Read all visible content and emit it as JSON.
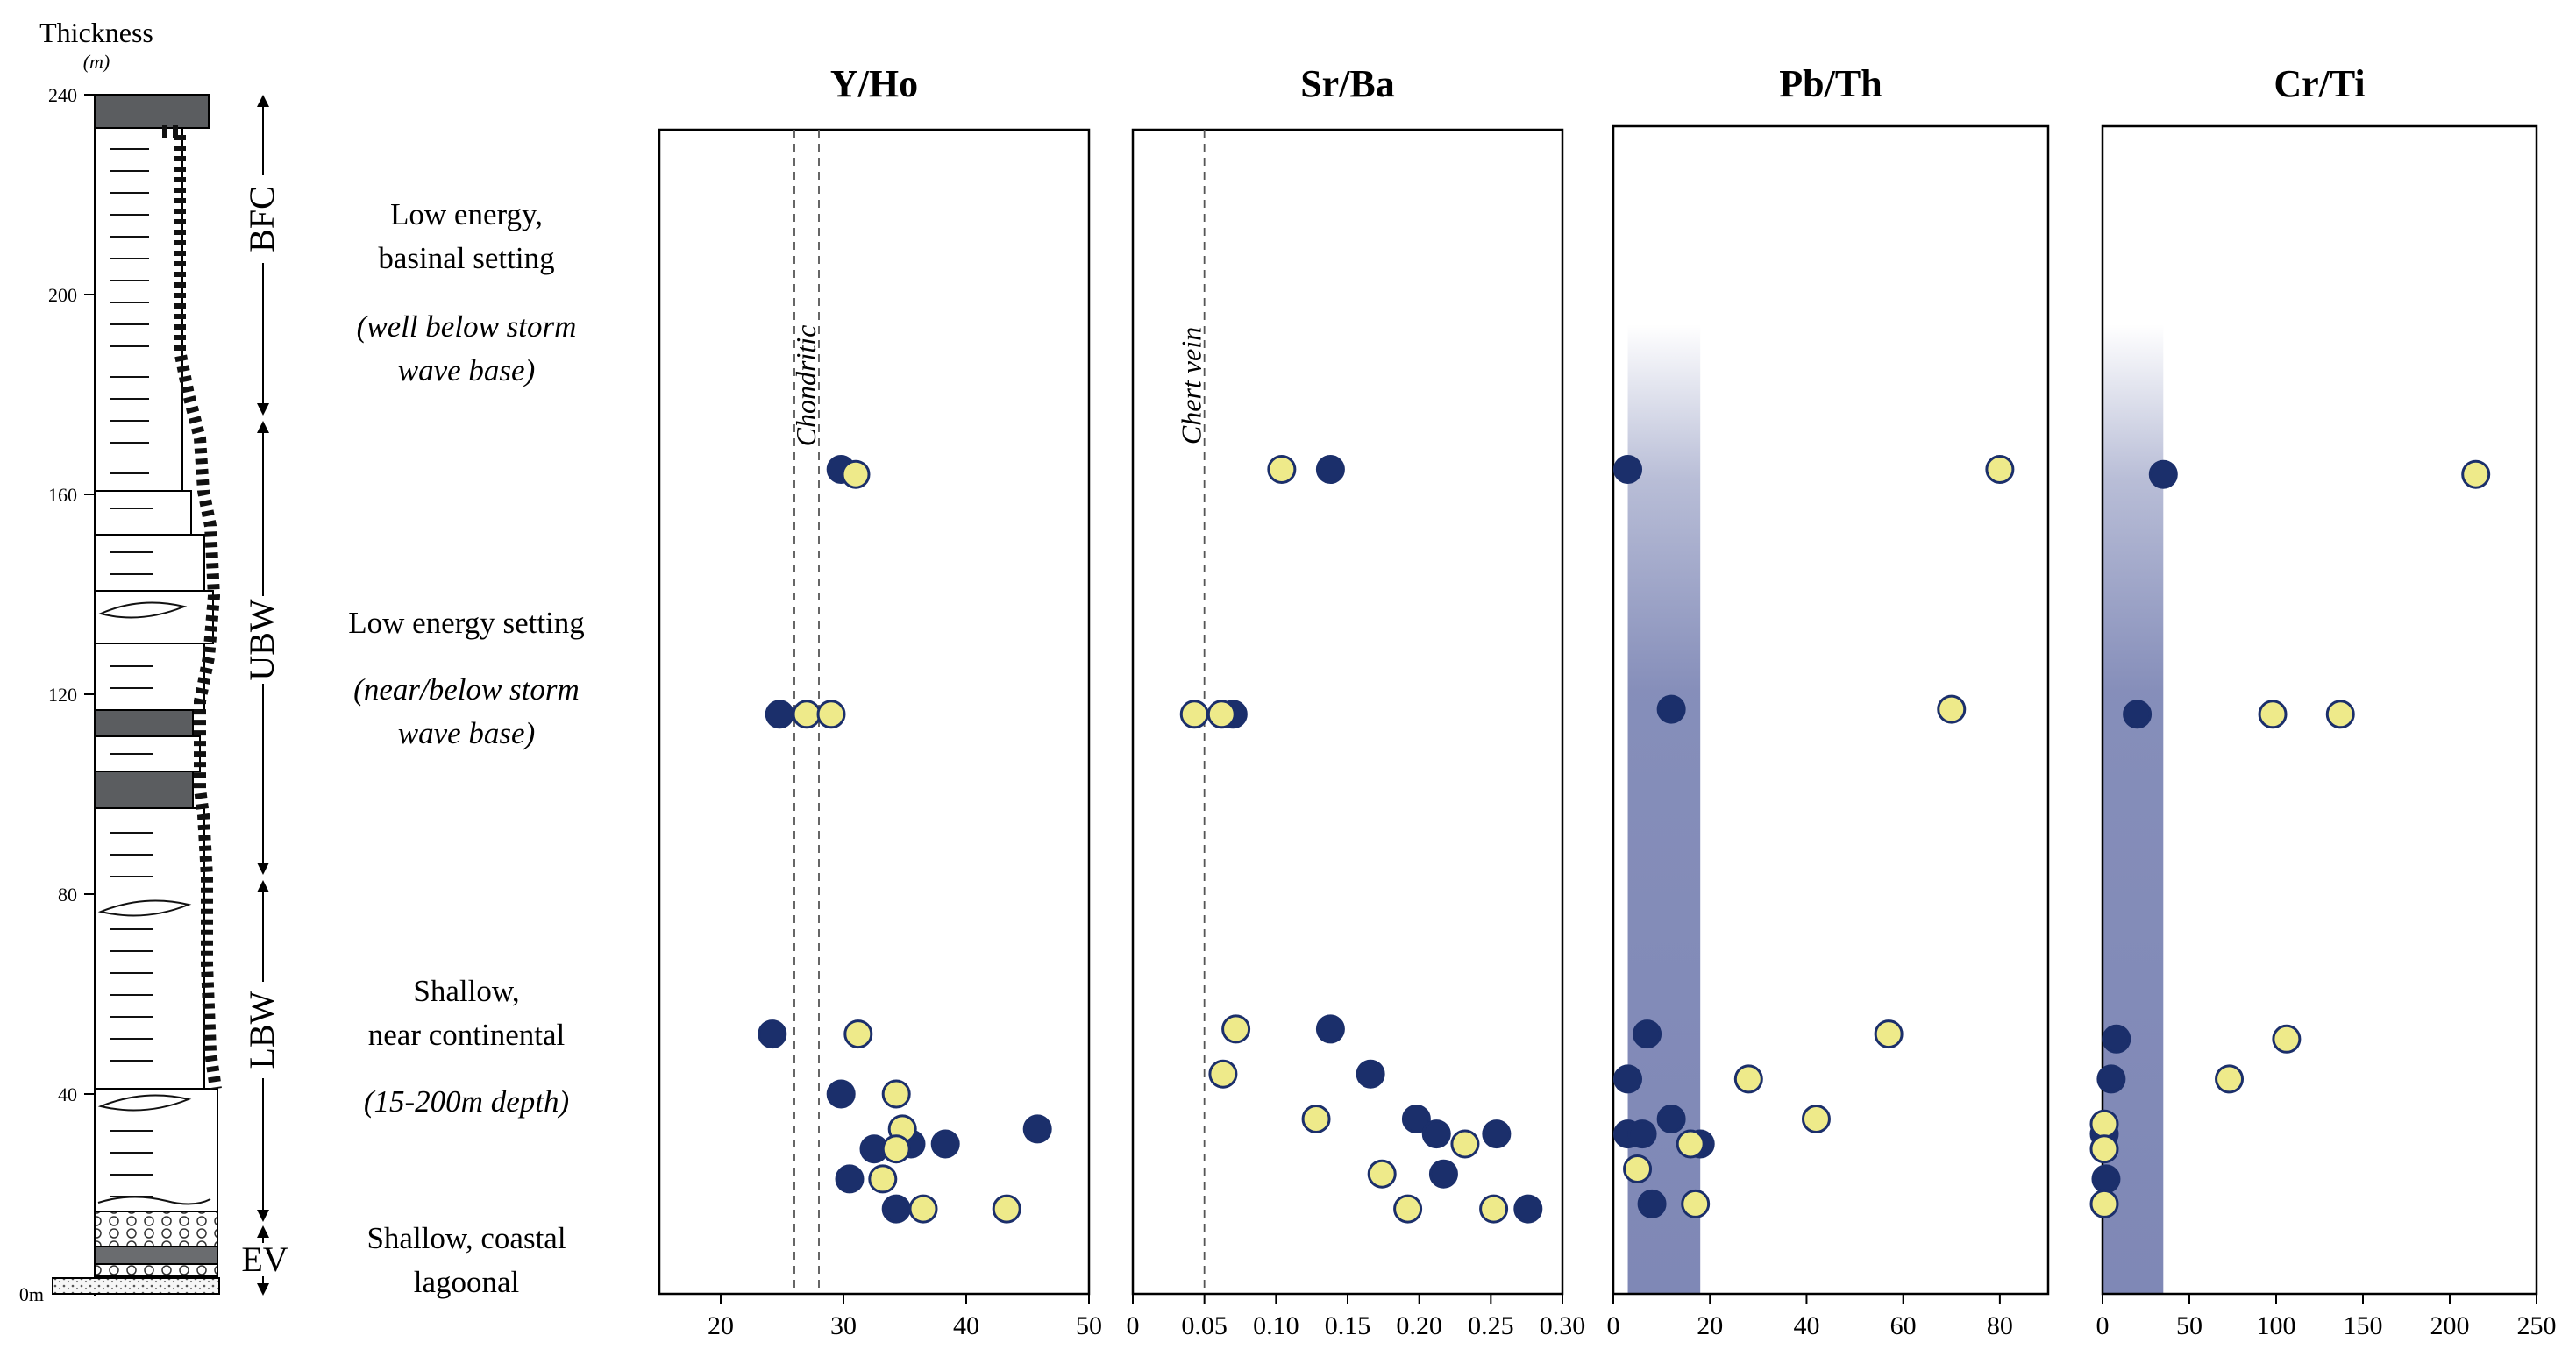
{
  "axis_title": "Thickness",
  "axis_unit": "(m)",
  "y_ticks": [
    "240",
    "200",
    "160",
    "120",
    "80",
    "40",
    "0m"
  ],
  "units": [
    "BFC",
    "UBW",
    "LBW",
    "EV"
  ],
  "interpretations": {
    "bfc": {
      "line1": "Low energy,",
      "line2": "basinal setting",
      "line3": "(well below storm",
      "line4": "wave base)"
    },
    "ubw": {
      "line1": "Low energy setting",
      "line2": "(near/below storm",
      "line3": "wave base)"
    },
    "lbw": {
      "line1": "Shallow,",
      "line2": "near continental",
      "line3": "(15-200m depth)"
    },
    "ev": {
      "line1": "Shallow, coastal",
      "line2": "lagoonal"
    }
  },
  "colors": {
    "dark_marker": "#1b2f6b",
    "light_marker": "#eeea8a",
    "band": "#7f88b6"
  },
  "chart_data": [
    {
      "type": "scatter",
      "title": "Y/Ho",
      "xlim": [
        15,
        50
      ],
      "x_ticks": [
        "20",
        "30",
        "40",
        "50"
      ],
      "y_range": [
        0,
        240
      ],
      "reference_lines": [
        {
          "value": 26,
          "label": ""
        },
        {
          "value": 28,
          "label": "Chondritic"
        }
      ],
      "series": [
        {
          "name": "dark",
          "points": [
            [
              29.8,
              165
            ],
            [
              24.8,
              116
            ],
            [
              24.2,
              52
            ],
            [
              29.8,
              40
            ],
            [
              45.8,
              33
            ],
            [
              38.3,
              30
            ],
            [
              35.5,
              30
            ],
            [
              32.5,
              29
            ],
            [
              30.5,
              23
            ],
            [
              34.3,
              17
            ]
          ]
        },
        {
          "name": "light",
          "points": [
            [
              31.0,
              164
            ],
            [
              27.0,
              116
            ],
            [
              29.0,
              116
            ],
            [
              31.2,
              52
            ],
            [
              34.3,
              40
            ],
            [
              34.8,
              33
            ],
            [
              34.3,
              29
            ],
            [
              33.2,
              23
            ],
            [
              36.5,
              17
            ],
            [
              43.3,
              17
            ]
          ]
        }
      ]
    },
    {
      "type": "scatter",
      "title": "Sr/Ba",
      "xlim": [
        0,
        0.3
      ],
      "x_ticks": [
        "0",
        "0.05",
        "0.10",
        "0.15",
        "0.20",
        "0.25",
        "0.30"
      ],
      "y_range": [
        0,
        240
      ],
      "reference_lines": [
        {
          "value": 0.05,
          "label": "Chert vein"
        }
      ],
      "series": [
        {
          "name": "dark",
          "points": [
            [
              0.138,
              165
            ],
            [
              0.07,
              116
            ],
            [
              0.138,
              53
            ],
            [
              0.166,
              44
            ],
            [
              0.198,
              35
            ],
            [
              0.212,
              32
            ],
            [
              0.254,
              32
            ],
            [
              0.217,
              24
            ],
            [
              0.276,
              17
            ]
          ]
        },
        {
          "name": "light",
          "points": [
            [
              0.104,
              165
            ],
            [
              0.043,
              116
            ],
            [
              0.062,
              116
            ],
            [
              0.072,
              53
            ],
            [
              0.063,
              44
            ],
            [
              0.128,
              35
            ],
            [
              0.232,
              30
            ],
            [
              0.174,
              24
            ],
            [
              0.192,
              17
            ],
            [
              0.252,
              17
            ]
          ]
        }
      ]
    },
    {
      "type": "scatter",
      "title": "Pb/Th",
      "xlim": [
        0,
        90
      ],
      "x_ticks": [
        "0",
        "20",
        "40",
        "60",
        "80"
      ],
      "y_range": [
        0,
        240
      ],
      "shaded_range": [
        3,
        18
      ],
      "series": [
        {
          "name": "dark",
          "points": [
            [
              3,
              165
            ],
            [
              12,
              117
            ],
            [
              7,
              52
            ],
            [
              3,
              43
            ],
            [
              12,
              35
            ],
            [
              3,
              32
            ],
            [
              6,
              32
            ],
            [
              18,
              30
            ],
            [
              8,
              18
            ]
          ]
        },
        {
          "name": "light",
          "points": [
            [
              80,
              165
            ],
            [
              70,
              117
            ],
            [
              57,
              52
            ],
            [
              28,
              43
            ],
            [
              42,
              35
            ],
            [
              16,
              30
            ],
            [
              5,
              25
            ],
            [
              17,
              18
            ]
          ]
        }
      ]
    },
    {
      "type": "scatter",
      "title": "Cr/Ti",
      "xlim": [
        0,
        250
      ],
      "x_ticks": [
        "0",
        "50",
        "100",
        "150",
        "200",
        "250"
      ],
      "y_range": [
        0,
        240
      ],
      "shaded_range": [
        0,
        35
      ],
      "series": [
        {
          "name": "dark",
          "points": [
            [
              35,
              164
            ],
            [
              20,
              116
            ],
            [
              8,
              51
            ],
            [
              5,
              43
            ],
            [
              1,
              32
            ],
            [
              2,
              23
            ]
          ]
        },
        {
          "name": "light",
          "points": [
            [
              215,
              164
            ],
            [
              98,
              116
            ],
            [
              137,
              116
            ],
            [
              106,
              51
            ],
            [
              73,
              43
            ],
            [
              1,
              34
            ],
            [
              1,
              29
            ],
            [
              1,
              18
            ]
          ]
        }
      ]
    }
  ]
}
